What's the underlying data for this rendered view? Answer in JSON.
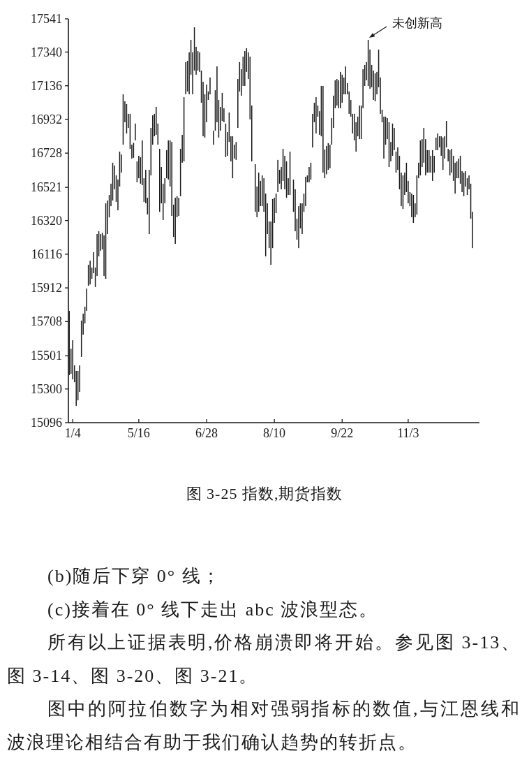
{
  "chart_data": {
    "type": "bar",
    "title": "图 3-25 指数,期货指数",
    "categories": [
      null,
      null,
      "1/4",
      null,
      null,
      null,
      null,
      null,
      null,
      null,
      null,
      null,
      null,
      null,
      null,
      null,
      null,
      null,
      null,
      null,
      null,
      null,
      null,
      null,
      null,
      null,
      null,
      null,
      null,
      null,
      null,
      null,
      null,
      null,
      null,
      null,
      null,
      null,
      null,
      null,
      "5/16",
      null,
      null,
      null,
      null,
      null,
      null,
      null,
      null,
      null,
      null,
      null,
      null,
      null,
      null,
      null,
      null,
      null,
      null,
      null,
      null,
      null,
      null,
      null,
      null,
      null,
      null,
      null,
      null,
      null,
      null,
      null,
      null,
      null,
      null,
      null,
      null,
      null,
      null,
      "6/28",
      null,
      null,
      null,
      null,
      null,
      null,
      null,
      null,
      null,
      null,
      null,
      null,
      null,
      null,
      null,
      null,
      null,
      null,
      null,
      null,
      null,
      null,
      null,
      null,
      null,
      null,
      null,
      null,
      null,
      null,
      null,
      null,
      null,
      null,
      null,
      null,
      null,
      null,
      "8/10",
      null,
      null,
      null,
      null,
      null,
      null,
      null,
      null,
      null,
      null,
      null,
      null,
      null,
      null,
      null,
      null,
      null,
      null,
      null,
      null,
      null,
      null,
      null,
      null,
      null,
      null,
      null,
      null,
      null,
      null,
      null,
      null,
      null,
      null,
      null,
      null,
      null,
      null,
      "9/22",
      null,
      null,
      null,
      null,
      null,
      null,
      null,
      null,
      null,
      null,
      null,
      null,
      null,
      null,
      null,
      null,
      null,
      null,
      null,
      null,
      null,
      null,
      null,
      null,
      null,
      null,
      null,
      null,
      null,
      null,
      null,
      null,
      null,
      null,
      null,
      null,
      null,
      "11/3",
      null,
      null,
      null,
      null,
      null,
      null,
      null,
      null,
      null,
      null,
      null,
      null,
      null,
      null,
      null,
      null,
      null,
      null,
      null,
      null,
      null,
      null,
      null,
      null,
      null,
      null,
      null,
      null,
      null,
      null,
      null,
      null,
      null,
      null,
      null,
      null,
      null
    ],
    "base": [
      15384,
      15392,
      15358,
      15341,
      15198,
      15231,
      15282,
      15494,
      15629,
      15697,
      15773,
      15925,
      15933,
      15967,
      16001,
      15917,
      15984,
      16103,
      16137,
      16145,
      15984,
      15967,
      16238,
      16339,
      16407,
      16441,
      16509,
      16433,
      16382,
      16526,
      16610,
      16779,
      16915,
      16847,
      16881,
      16754,
      16695,
      16700,
      16805,
      16551,
      16576,
      16543,
      16534,
      16433,
      16424,
      16357,
      16238,
      16593,
      16779,
      16830,
      16839,
      16779,
      16373,
      16424,
      16323,
      16424,
      16576,
      16568,
      16526,
      16348,
      16221,
      16179,
      16340,
      16348,
      16467,
      16670,
      16678,
      17084,
      17101,
      17084,
      17203,
      17084,
      17228,
      17203,
      17228,
      17220,
      17033,
      16830,
      16822,
      16915,
      17050,
      17084,
      null,
      16779,
      16864,
      16915,
      16822,
      16864,
      16923,
      16915,
      16704,
      16712,
      16796,
      16678,
      16576,
      16695,
      16687,
      16881,
      17101,
      17076,
      17135,
      17135,
      17220,
      17177,
      16932,
      16678,
      null,
      16373,
      16340,
      16373,
      16407,
      16407,
      16373,
      16103,
      16238,
      16153,
      16052,
      16153,
      16306,
      16365,
      16492,
      16543,
      16509,
      16560,
      16509,
      16458,
      16475,
      16475,
      null,
      16373,
      16255,
      16204,
      16153,
      16272,
      16238,
      16373,
      16407,
      16551,
      16551,
      16568,
      16762,
      16915,
      16847,
      16949,
      16839,
      16830,
      16610,
      16576,
      16600,
      16627,
      16636,
      16779,
      16881,
      17000,
      17016,
      17000,
      17000,
      17033,
      17084,
      17084,
      17084,
      16966,
      16949,
      16847,
      16805,
      16737,
      16830,
      16813,
      16813,
      17000,
      17135,
      17169,
      17135,
      17118,
      17127,
      17050,
      17042,
      17084,
      17127,
      16966,
      16915,
      16695,
      16779,
      16813,
      16644,
      16678,
      16712,
      16746,
      16610,
      16627,
      16509,
      16407,
      16390,
      16475,
      16492,
      16424,
      16407,
      16340,
      16306,
      16340,
      16356,
      16576,
      16593,
      16644,
      16670,
      16593,
      16610,
      16610,
      16610,
      16560,
      16610,
      16746,
      16746,
      16763,
      16712,
      16627,
      16695,
      16763,
      16678,
      16593,
      16610,
      16560,
      16483,
      16576,
      16576,
      16543,
      16492,
      16467,
      16525,
      16475,
      16509,
      16331,
      16153
    ],
    "values": [
      389,
      152,
      237,
      102,
      211,
      178,
      161,
      220,
      127,
      101,
      135,
      127,
      144,
      68,
      127,
      118,
      254,
      152,
      101,
      101,
      246,
      457,
      203,
      136,
      136,
      229,
      144,
      160,
      186,
      211,
      110,
      305,
      127,
      178,
      85,
      212,
      84,
      90,
      102,
      127,
      136,
      160,
      271,
      143,
      203,
      101,
      389,
      288,
      178,
      136,
      169,
      128,
      381,
      220,
      220,
      152,
      170,
      237,
      279,
      448,
      195,
      279,
      127,
      110,
      287,
      169,
      389,
      195,
      186,
      254,
      211,
      254,
      262,
      169,
      118,
      118,
      195,
      330,
      262,
      228,
      51,
      102,
      null,
      85,
      245,
      338,
      228,
      144,
      170,
      84,
      203,
      144,
      178,
      152,
      254,
      84,
      109,
      296,
      178,
      160,
      177,
      211,
      143,
      161,
      380,
      338,
      null,
      288,
      186,
      237,
      153,
      186,
      203,
      380,
      186,
      161,
      262,
      297,
      152,
      118,
      195,
      84,
      135,
      194,
      203,
      220,
      101,
      262,
      null,
      195,
      254,
      127,
      254,
      152,
      186,
      110,
      178,
      42,
      93,
      102,
      204,
      118,
      220,
      67,
      143,
      305,
      525,
      174,
      171,
      161,
      143,
      161,
      195,
      169,
      161,
      169,
      220,
      170,
      102,
      169,
      68,
      135,
      101,
      119,
      161,
      178,
      119,
      203,
      203,
      236,
      127,
      110,
      279,
      237,
      135,
      178,
      169,
      136,
      228,
      220,
      76,
      254,
      170,
      127,
      271,
      118,
      195,
      135,
      127,
      136,
      203,
      203,
      203,
      135,
      178,
      136,
      85,
      143,
      169,
      84,
      237,
      94,
      212,
      169,
      211,
      220,
      136,
      136,
      102,
      186,
      102,
      76,
      101,
      67,
      118,
      195,
      135,
      160,
      76,
      153,
      144,
      152,
      187,
      102,
      119,
      169,
      127,
      143,
      94,
      101,
      84,
      212,
      220
    ],
    "color": "#1a1a1a",
    "ylim": [
      15096,
      17541
    ],
    "yticks": [
      15096,
      15300,
      15501,
      15708,
      15912,
      16116,
      16320,
      16521,
      16728,
      16932,
      17136,
      17340,
      17541
    ],
    "annotations": [
      "未创新高",
      "(b)随后下穿 0° 线；",
      "(c)接着在 0° 线下走出 abc 波浪型态。",
      "所有以上证据表明,价格崩溃即将开始。参见图 3-13、图 3-14、图 3-20、图 3-21。",
      "图中的阿拉伯数字为相对强弱指标的数值,与江恩线和波浪理论相结合有助于我们确认趋势的转折点。"
    ]
  }
}
